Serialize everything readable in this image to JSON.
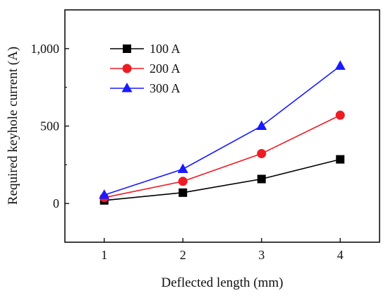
{
  "chart_data": {
    "type": "line",
    "xlabel": "Deflected length (mm)",
    "ylabel": "Required keyhole current (A)",
    "x": [
      1,
      2,
      3,
      4
    ],
    "xlim": [
      0.5,
      4.5
    ],
    "ylim": [
      -250,
      1250
    ],
    "xticks": [
      1,
      2,
      3,
      4
    ],
    "xtick_labels": [
      "1",
      "2",
      "3",
      "4"
    ],
    "yticks": [
      0,
      500,
      1000
    ],
    "ytick_labels": [
      "0",
      "500",
      "1,000"
    ],
    "grid": false,
    "legend_position": "top-left",
    "series": [
      {
        "name": "100 A",
        "color": "#000000",
        "marker": "square",
        "values": [
          20,
          70,
          158,
          285
        ]
      },
      {
        "name": "200 A",
        "color": "#ee1c25",
        "marker": "circle",
        "values": [
          38,
          143,
          322,
          570
        ]
      },
      {
        "name": "300 A",
        "color": "#1a1aff",
        "marker": "triangle",
        "values": [
          55,
          222,
          500,
          888
        ]
      }
    ]
  }
}
